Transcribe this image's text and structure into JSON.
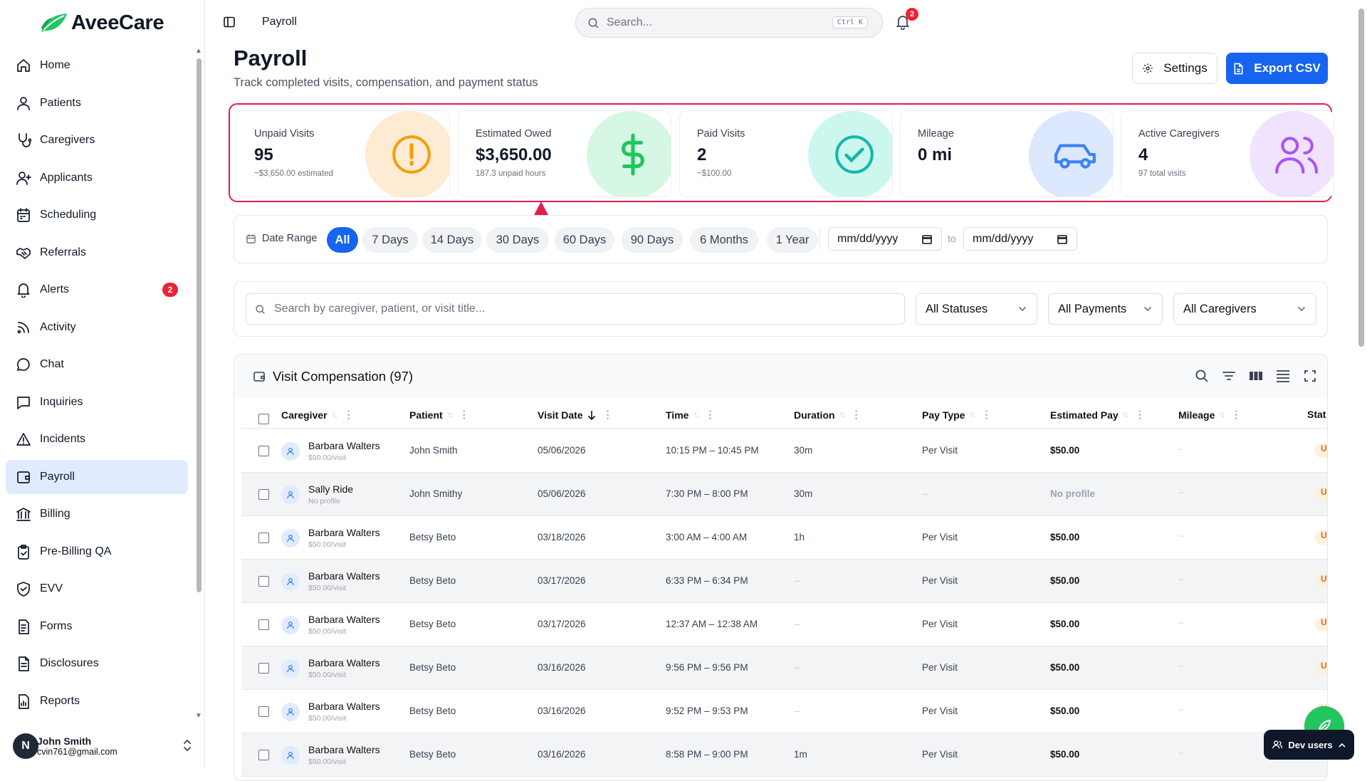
{
  "brand": {
    "name": "AveeCare",
    "color": "#22c55e"
  },
  "nav": [
    {
      "label": "Home",
      "icon": "home-icon"
    },
    {
      "label": "Patients",
      "icon": "user-icon"
    },
    {
      "label": "Caregivers",
      "icon": "stethoscope-icon"
    },
    {
      "label": "Applicants",
      "icon": "user-plus-icon"
    },
    {
      "label": "Scheduling",
      "icon": "calendar-icon"
    },
    {
      "label": "Referrals",
      "icon": "handshake-icon"
    },
    {
      "label": "Alerts",
      "icon": "bell-icon",
      "badge": "2"
    },
    {
      "label": "Activity",
      "icon": "activity-icon"
    },
    {
      "label": "Chat",
      "icon": "chat-icon"
    },
    {
      "label": "Inquiries",
      "icon": "message-square-icon"
    },
    {
      "label": "Incidents",
      "icon": "warning-icon"
    },
    {
      "label": "Payroll",
      "icon": "wallet-icon",
      "active": true
    },
    {
      "label": "Billing",
      "icon": "bank-icon"
    },
    {
      "label": "Pre-Billing QA",
      "icon": "clipboard-check-icon"
    },
    {
      "label": "EVV",
      "icon": "shield-check-icon"
    },
    {
      "label": "Forms",
      "icon": "form-icon"
    },
    {
      "label": "Disclosures",
      "icon": "document-icon"
    },
    {
      "label": "Reports",
      "icon": "report-icon"
    }
  ],
  "user": {
    "initial": "N",
    "name": "John Smith",
    "email": "cvin761@gmail.com"
  },
  "topbar": {
    "breadcrumb": "Payroll",
    "search_placeholder": "Search...",
    "shortcut": "Ctrl K",
    "notif_count": "2"
  },
  "header": {
    "title": "Payroll",
    "subtitle": "Track completed visits, compensation, and payment status",
    "settings_label": "Settings",
    "export_label": "Export CSV"
  },
  "stats": [
    {
      "label": "Unpaid Visits",
      "value": "95",
      "note": "~$3,650.00 estimated",
      "color": "#f59e0b",
      "bg": "#fdebd3",
      "icon": "alert-circle-icon"
    },
    {
      "label": "Estimated Owed",
      "value": "$3,650.00",
      "note": "187.3 unpaid hours",
      "color": "#22c55e",
      "bg": "#d6f7e3",
      "icon": "dollar-icon"
    },
    {
      "label": "Paid Visits",
      "value": "2",
      "note": "~$100.00",
      "color": "#14b8a6",
      "bg": "#ccf7ee",
      "icon": "check-circle-icon"
    },
    {
      "label": "Mileage",
      "value": "0 mi",
      "note": "",
      "color": "#3b82f6",
      "bg": "#dbe8fd",
      "icon": "car-icon"
    },
    {
      "label": "Active Caregivers",
      "value": "4",
      "note": "97 total visits",
      "color": "#a855f7",
      "bg": "#f0e3fd",
      "icon": "users-icon"
    }
  ],
  "date_range": {
    "label": "Date Range",
    "pills": [
      "All",
      "7 Days",
      "14 Days",
      "30 Days",
      "60 Days",
      "90 Days",
      "6 Months",
      "1 Year"
    ],
    "active": "All",
    "from_placeholder": "mm/dd/yyyy",
    "to_label": "to",
    "to_placeholder": "mm/dd/yyyy"
  },
  "filters": {
    "search_placeholder": "Search by caregiver, patient, or visit title...",
    "status": "All Statuses",
    "payment": "All Payments",
    "caregiver": "All Caregivers"
  },
  "table": {
    "title": "Visit Compensation (97)",
    "columns": [
      "Caregiver",
      "Patient",
      "Visit Date",
      "Time",
      "Duration",
      "Pay Type",
      "Estimated Pay",
      "Mileage",
      "Stat"
    ],
    "rows": [
      {
        "caregiver": "Barbara Walters",
        "rate": "$50.00/visit",
        "patient": "John Smith",
        "date": "05/06/2026",
        "time": "10:15 PM – 10:45 PM",
        "duration": "30m",
        "pay_type": "Per Visit",
        "pay": "$50.00",
        "mileage": "--",
        "status": "Un"
      },
      {
        "caregiver": "Sally Ride",
        "rate": "No profile",
        "patient": "John Smithy",
        "date": "05/06/2026",
        "time": "7:30 PM – 8:00 PM",
        "duration": "30m",
        "pay_type": "--",
        "pay": "No profile",
        "mileage": "--",
        "status": "Un"
      },
      {
        "caregiver": "Barbara Walters",
        "rate": "$50.00/visit",
        "patient": "Betsy Beto",
        "date": "03/18/2026",
        "time": "3:00 AM – 4:00 AM",
        "duration": "1h",
        "pay_type": "Per Visit",
        "pay": "$50.00",
        "mileage": "--",
        "status": "Un"
      },
      {
        "caregiver": "Barbara Walters",
        "rate": "$50.00/visit",
        "patient": "Betsy Beto",
        "date": "03/17/2026",
        "time": "6:33 PM – 6:34 PM",
        "duration": "--",
        "pay_type": "Per Visit",
        "pay": "$50.00",
        "mileage": "--",
        "status": "Un"
      },
      {
        "caregiver": "Barbara Walters",
        "rate": "$50.00/visit",
        "patient": "Betsy Beto",
        "date": "03/17/2026",
        "time": "12:37 AM – 12:38 AM",
        "duration": "--",
        "pay_type": "Per Visit",
        "pay": "$50.00",
        "mileage": "--",
        "status": "Un"
      },
      {
        "caregiver": "Barbara Walters",
        "rate": "$50.00/visit",
        "patient": "Betsy Beto",
        "date": "03/16/2026",
        "time": "9:56 PM – 9:56 PM",
        "duration": "--",
        "pay_type": "Per Visit",
        "pay": "$50.00",
        "mileage": "--",
        "status": "Un"
      },
      {
        "caregiver": "Barbara Walters",
        "rate": "$50.00/visit",
        "patient": "Betsy Beto",
        "date": "03/16/2026",
        "time": "9:52 PM – 9:53 PM",
        "duration": "--",
        "pay_type": "Per Visit",
        "pay": "$50.00",
        "mileage": "--",
        "status": "Un"
      },
      {
        "caregiver": "Barbara Walters",
        "rate": "$50.00/visit",
        "patient": "Betsy Beto",
        "date": "03/16/2026",
        "time": "8:58 PM – 9:00 PM",
        "duration": "1m",
        "pay_type": "Per Visit",
        "pay": "$50.00",
        "mileage": "--",
        "status": ""
      }
    ]
  },
  "dev_users": {
    "label": "Dev users"
  }
}
